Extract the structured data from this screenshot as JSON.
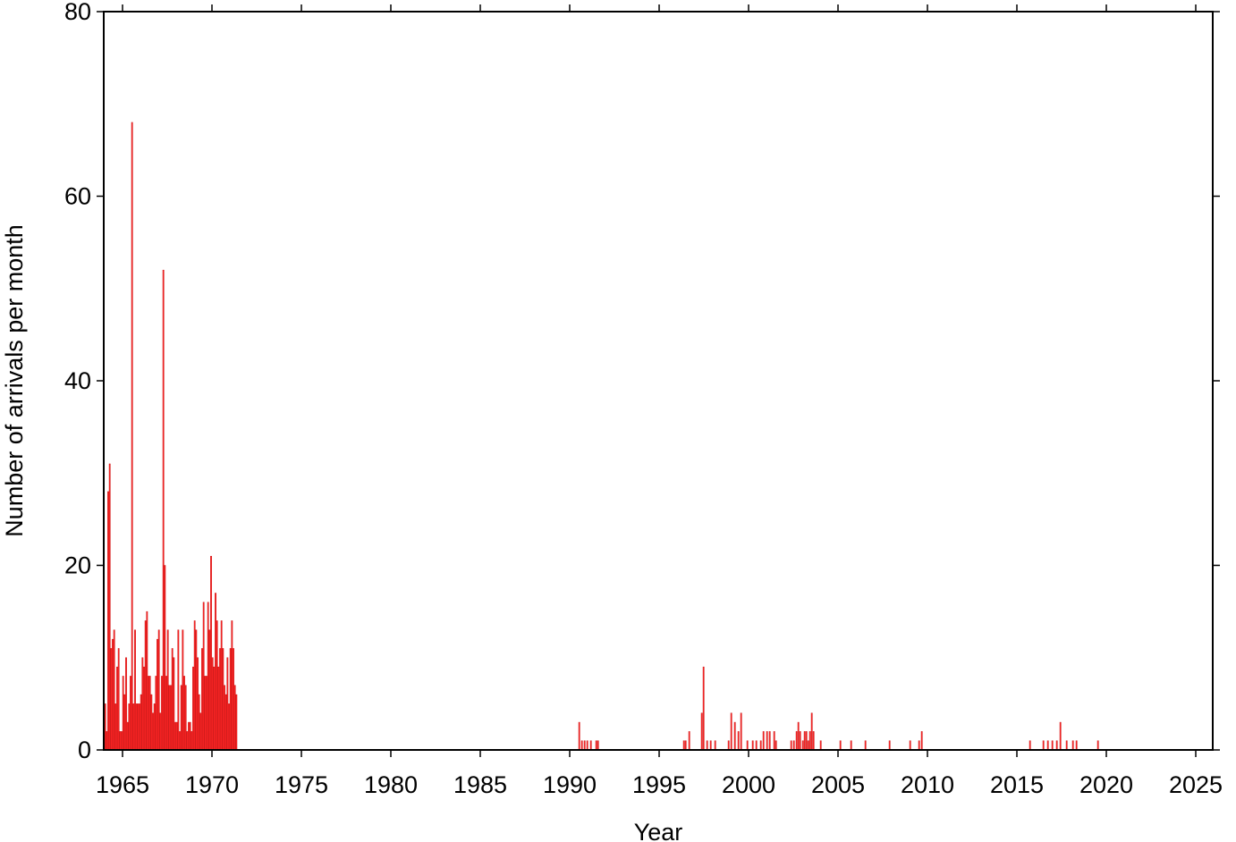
{
  "chart_data": {
    "type": "bar",
    "x_label": "Year",
    "y_label": "Number of arrivals per month",
    "color": "#ff2a2a",
    "x": [
      1964.0,
      1964.083,
      1964.167,
      1964.25,
      1964.333,
      1964.417,
      1964.5,
      1964.583,
      1964.667,
      1964.75,
      1964.833,
      1964.917,
      1965.0,
      1965.083,
      1965.167,
      1965.25,
      1965.333,
      1965.417,
      1965.5,
      1965.583,
      1965.667,
      1965.75,
      1965.833,
      1965.917,
      1966.0,
      1966.083,
      1966.167,
      1966.25,
      1966.333,
      1966.417,
      1966.5,
      1966.583,
      1966.667,
      1966.75,
      1966.833,
      1966.917,
      1967.0,
      1967.083,
      1967.167,
      1967.25,
      1967.333,
      1967.417,
      1967.5,
      1967.583,
      1967.667,
      1967.75,
      1967.833,
      1967.917,
      1968.0,
      1968.083,
      1968.167,
      1968.25,
      1968.333,
      1968.417,
      1968.5,
      1968.583,
      1968.667,
      1968.75,
      1968.833,
      1968.917,
      1969.0,
      1969.083,
      1969.167,
      1969.25,
      1969.333,
      1969.417,
      1969.5,
      1969.583,
      1969.667,
      1969.75,
      1969.833,
      1969.917,
      1970.0,
      1970.083,
      1970.167,
      1970.25,
      1970.333,
      1970.417,
      1970.5,
      1970.583,
      1970.667,
      1970.75,
      1970.833,
      1970.917,
      1971.0,
      1971.083,
      1971.167,
      1971.25,
      1971.333,
      1990.5,
      1990.65,
      1990.8,
      1990.95,
      1991.15,
      1991.45,
      1991.55,
      1996.35,
      1996.45,
      1996.65,
      1997.35,
      1997.45,
      1997.65,
      1997.85,
      1998.1,
      1998.85,
      1999.0,
      1999.2,
      1999.4,
      1999.55,
      1999.9,
      2000.2,
      2000.4,
      2000.65,
      2000.8,
      2001.0,
      2001.15,
      2001.4,
      2001.5,
      2002.35,
      2002.5,
      2002.65,
      2002.75,
      2002.85,
      2003.0,
      2003.1,
      2003.2,
      2003.3,
      2003.4,
      2003.5,
      2003.6,
      2004.0,
      2005.1,
      2005.7,
      2006.5,
      2007.85,
      2009.0,
      2009.5,
      2009.65,
      2015.7,
      2016.45,
      2016.7,
      2016.95,
      2017.2,
      2017.4,
      2017.75,
      2018.1,
      2018.3,
      2019.5
    ],
    "values": [
      5,
      2,
      28,
      31,
      11,
      12,
      13,
      5,
      9,
      11,
      2,
      2,
      8,
      6,
      10,
      3,
      5,
      8,
      68,
      5,
      13,
      5,
      5,
      5,
      6,
      10,
      9,
      14,
      15,
      8,
      8,
      6,
      4,
      5,
      8,
      12,
      13,
      4,
      8,
      52,
      20,
      8,
      13,
      7,
      7,
      11,
      10,
      3,
      3,
      13,
      2,
      7,
      13,
      8,
      7,
      2,
      3,
      3,
      2,
      9,
      14,
      13,
      10,
      6,
      4,
      11,
      16,
      8,
      8,
      16,
      13,
      21,
      10,
      9,
      17,
      14,
      9,
      11,
      14,
      11,
      7,
      6,
      10,
      5,
      11,
      14,
      11,
      7,
      6,
      3,
      1,
      1,
      1,
      1,
      1,
      1,
      1,
      1,
      2,
      4,
      9,
      1,
      1,
      1,
      1,
      4,
      3,
      2,
      4,
      1,
      1,
      1,
      1,
      2,
      2,
      2,
      2,
      1,
      1,
      1,
      2,
      3,
      2,
      1,
      2,
      2,
      1,
      2,
      4,
      2,
      1,
      1,
      1,
      1,
      1,
      1,
      1,
      2,
      1,
      1,
      1,
      1,
      1,
      3,
      1,
      1,
      1,
      1
    ],
    "xlim": [
      1963.95,
      2025.95
    ],
    "ylim": [
      0,
      80
    ],
    "xticks": [
      1965,
      1970,
      1975,
      1980,
      1985,
      1990,
      1995,
      2000,
      2005,
      2010,
      2015,
      2020,
      2025
    ],
    "yticks": [
      0,
      20,
      40,
      60,
      80
    ]
  }
}
